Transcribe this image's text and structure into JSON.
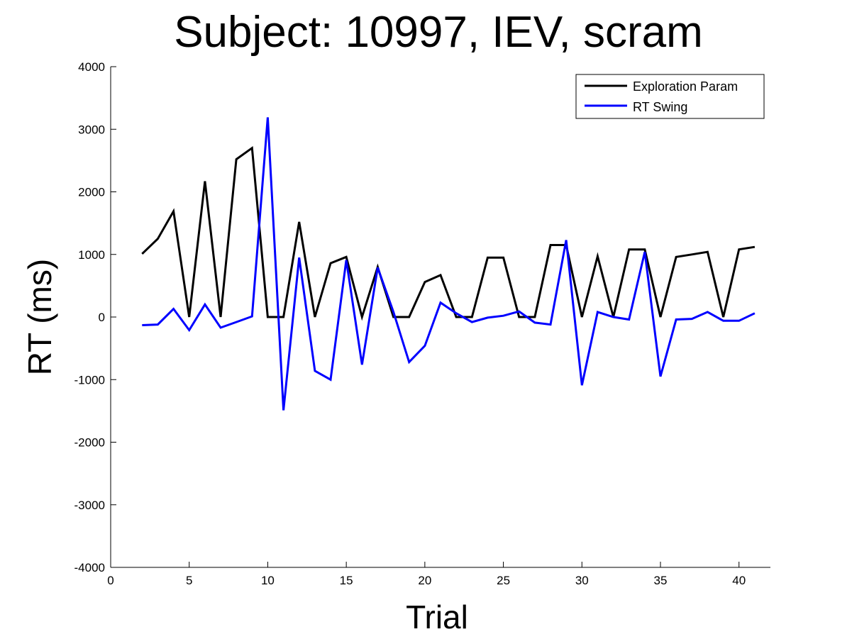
{
  "chart_data": {
    "type": "line",
    "title": "Subject: 10997, IEV, scram",
    "xlabel": "Trial",
    "ylabel": "RT (ms)",
    "xlim": [
      0,
      42
    ],
    "ylim": [
      -4000,
      4000
    ],
    "xticks": [
      0,
      5,
      10,
      15,
      20,
      25,
      30,
      35,
      40
    ],
    "yticks": [
      -4000,
      -3000,
      -2000,
      -1000,
      0,
      1000,
      2000,
      3000,
      4000
    ],
    "grid": false,
    "legend_position": "top-right",
    "x": [
      2,
      3,
      4,
      5,
      6,
      7,
      8,
      9,
      10,
      11,
      12,
      13,
      14,
      15,
      16,
      17,
      18,
      19,
      20,
      21,
      22,
      23,
      24,
      25,
      26,
      27,
      28,
      29,
      30,
      31,
      32,
      33,
      34,
      35,
      36,
      37,
      38,
      39,
      40,
      41
    ],
    "series": [
      {
        "name": "Exploration Param",
        "color": "#000000",
        "values": [
          1010,
          1250,
          1690,
          0,
          2170,
          0,
          2520,
          2700,
          0,
          0,
          1520,
          0,
          860,
          960,
          0,
          800,
          0,
          0,
          560,
          670,
          0,
          0,
          950,
          950,
          0,
          0,
          1150,
          1150,
          0,
          970,
          0,
          1080,
          1080,
          0,
          960,
          1000,
          1040,
          0,
          1080,
          1120
        ]
      },
      {
        "name": "RT Swing",
        "color": "#0000ff",
        "values": [
          -130,
          -120,
          130,
          -210,
          200,
          -170,
          -80,
          10,
          3190,
          -1490,
          950,
          -860,
          -1000,
          910,
          -760,
          790,
          80,
          -720,
          -460,
          230,
          60,
          -80,
          -10,
          20,
          90,
          -90,
          -120,
          1230,
          -1090,
          80,
          0,
          -40,
          1040,
          -950,
          -40,
          -30,
          80,
          -60,
          -60,
          60
        ]
      }
    ]
  }
}
